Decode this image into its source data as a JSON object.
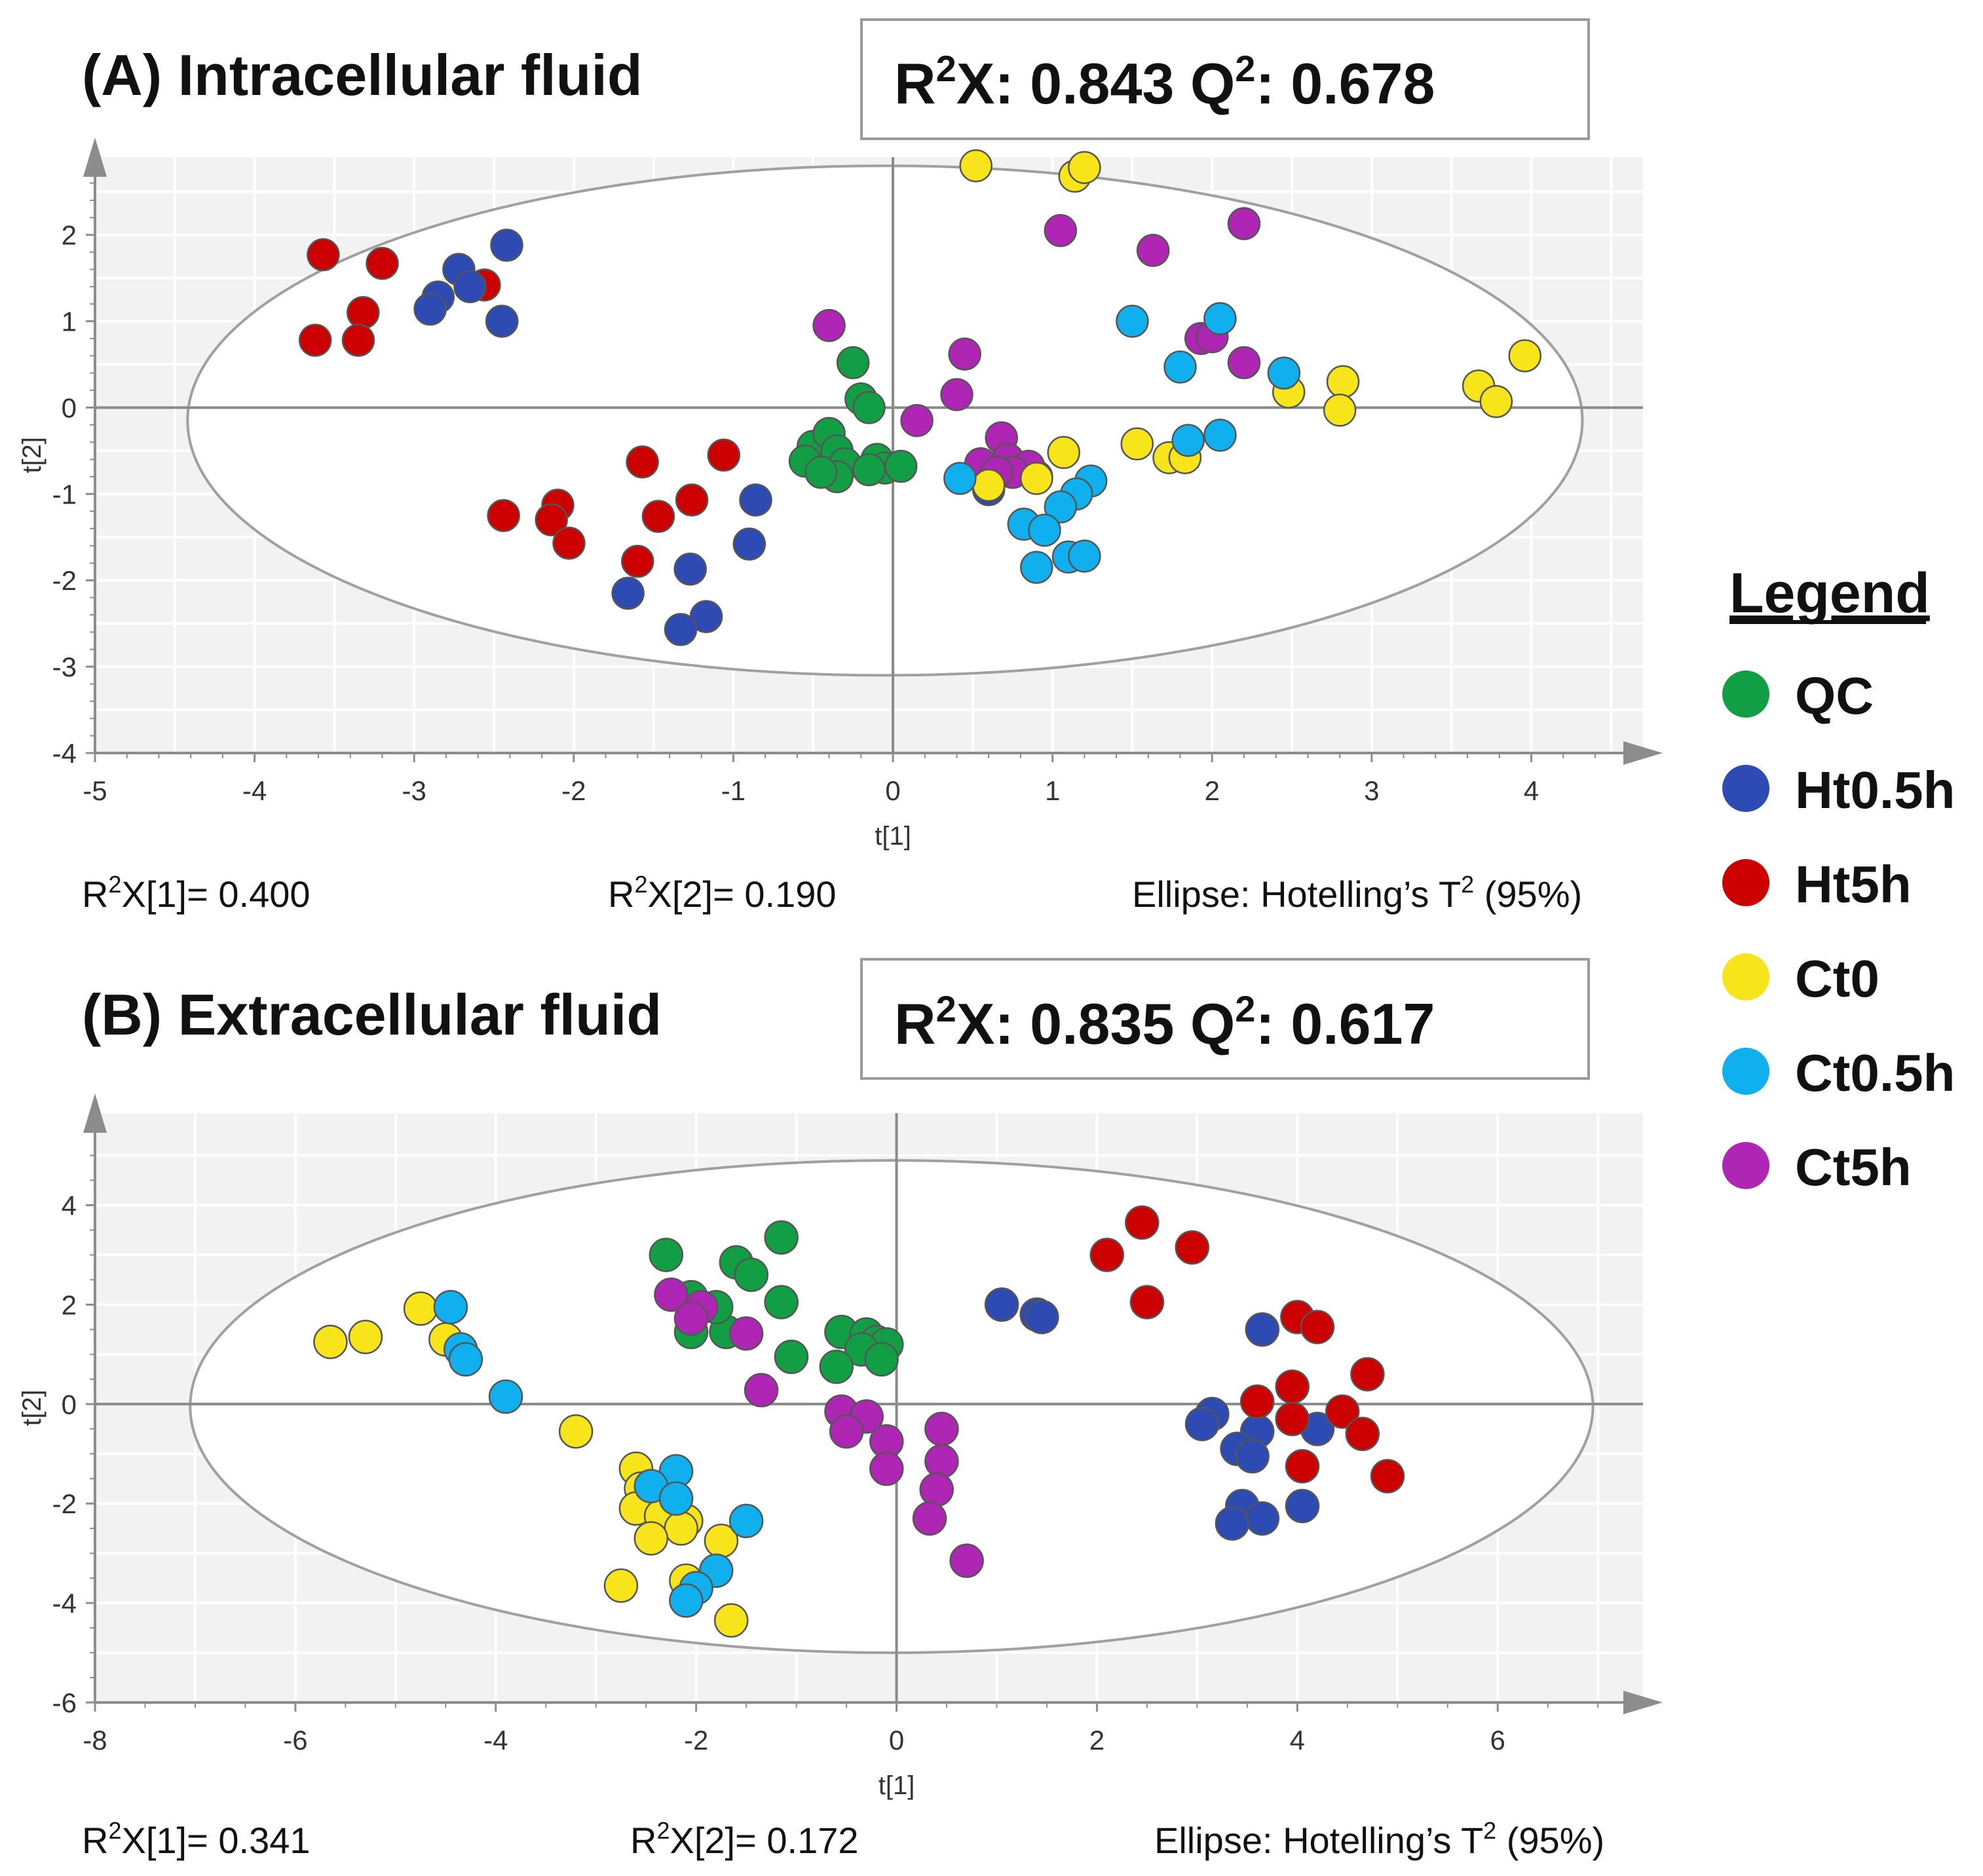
{
  "colors": {
    "QC": "#119e44",
    "Ht0.5h": "#2e4bb4",
    "Ht5h": "#cc0000",
    "Ct0": "#f8e41a",
    "Ct0.5h": "#10b0ee",
    "Ct5h": "#b026b4"
  },
  "legend": {
    "title": "Legend",
    "items": [
      "QC",
      "Ht0.5h",
      "Ht5h",
      "Ct0",
      "Ct0.5h",
      "Ct5h"
    ]
  },
  "chart_data": [
    {
      "type": "scatter",
      "title": "(A) Intracellular fluid",
      "stats_box": {
        "r2x_label": "R",
        "r2x_sup": "2",
        "r2x_rest": "X: 0.843 Q",
        "q2_sup": "2",
        "q2_value": ": 0.678"
      },
      "xlabel": "t[1]",
      "ylabel": "t[2]",
      "xlim": [
        -5,
        4.7
      ],
      "ylim": [
        -4,
        2.9
      ],
      "xticks": [
        -5,
        -4,
        -3,
        -2,
        -1,
        0,
        1,
        2,
        3,
        4
      ],
      "yticks": [
        -4,
        -3,
        -2,
        -1,
        0,
        1,
        2
      ],
      "ellipse": {
        "cx": -0.05,
        "cy": -0.15,
        "rx": 4.37,
        "ry": 2.95
      },
      "footer": {
        "left": {
          "pre": "R",
          "sup": "2",
          "post": "X[1]= 0.400"
        },
        "mid": {
          "pre": "R",
          "sup": "2",
          "post": "X[2]= 0.190"
        },
        "right": {
          "pre": "Ellipse: Hotelling’s T",
          "sup": "2",
          "post": " (95%)"
        }
      },
      "series": [
        {
          "name": "Ht5h",
          "points": [
            [
              -3.57,
              1.77
            ],
            [
              -3.2,
              1.67
            ],
            [
              -3.32,
              1.1
            ],
            [
              -3.62,
              0.78
            ],
            [
              -3.35,
              0.78
            ],
            [
              -2.56,
              1.42
            ],
            [
              -2.44,
              -1.25
            ],
            [
              -2.1,
              -1.13
            ],
            [
              -2.14,
              -1.3
            ],
            [
              -2.03,
              -1.57
            ],
            [
              -1.57,
              -0.63
            ],
            [
              -1.47,
              -1.26
            ],
            [
              -1.26,
              -1.07
            ],
            [
              -1.06,
              -0.55
            ],
            [
              -1.6,
              -1.78
            ]
          ]
        },
        {
          "name": "Ht0.5h",
          "points": [
            [
              -2.72,
              1.6
            ],
            [
              -2.65,
              1.4
            ],
            [
              -2.85,
              1.28
            ],
            [
              -2.9,
              1.14
            ],
            [
              -2.42,
              1.88
            ],
            [
              -2.45,
              1.0
            ],
            [
              -0.86,
              -1.07
            ],
            [
              -0.9,
              -1.58
            ],
            [
              -1.66,
              -2.15
            ],
            [
              -1.27,
              -1.87
            ],
            [
              -1.17,
              -2.42
            ],
            [
              -1.33,
              -2.57
            ],
            [
              0.6,
              -0.95
            ],
            [
              0.9,
              -0.8
            ]
          ]
        },
        {
          "name": "QC",
          "points": [
            [
              -0.25,
              0.52
            ],
            [
              -0.2,
              0.1
            ],
            [
              -0.15,
              0.0
            ],
            [
              -0.5,
              -0.45
            ],
            [
              -0.4,
              -0.3
            ],
            [
              -0.35,
              -0.5
            ],
            [
              -0.55,
              -0.62
            ],
            [
              -0.3,
              -0.65
            ],
            [
              -0.35,
              -0.8
            ],
            [
              -0.1,
              -0.6
            ],
            [
              -0.05,
              -0.7
            ],
            [
              0.05,
              -0.68
            ],
            [
              -0.15,
              -0.72
            ],
            [
              -0.45,
              -0.75
            ]
          ]
        },
        {
          "name": "Ct5h",
          "points": [
            [
              -0.4,
              0.95
            ],
            [
              0.45,
              0.62
            ],
            [
              0.4,
              0.15
            ],
            [
              0.15,
              -0.15
            ],
            [
              1.05,
              2.05
            ],
            [
              1.63,
              1.82
            ],
            [
              2.2,
              2.13
            ],
            [
              1.93,
              0.8
            ],
            [
              2.0,
              0.82
            ],
            [
              2.2,
              0.52
            ],
            [
              0.68,
              -0.35
            ],
            [
              0.72,
              -0.6
            ],
            [
              0.55,
              -0.65
            ],
            [
              0.85,
              -0.68
            ],
            [
              0.75,
              -0.75
            ],
            [
              0.65,
              -0.75
            ]
          ]
        },
        {
          "name": "Ct0",
          "points": [
            [
              0.52,
              2.8
            ],
            [
              1.14,
              2.68
            ],
            [
              1.2,
              2.78
            ],
            [
              1.07,
              -0.52
            ],
            [
              1.53,
              -0.42
            ],
            [
              1.73,
              -0.58
            ],
            [
              1.83,
              -0.58
            ],
            [
              2.48,
              0.18
            ],
            [
              2.82,
              0.3
            ],
            [
              2.8,
              -0.03
            ],
            [
              3.67,
              0.25
            ],
            [
              3.78,
              0.07
            ],
            [
              3.96,
              0.6
            ],
            [
              0.9,
              -0.82
            ],
            [
              0.6,
              -0.9
            ]
          ]
        },
        {
          "name": "Ct0.5h",
          "points": [
            [
              1.5,
              1.0
            ],
            [
              2.05,
              1.03
            ],
            [
              2.45,
              0.4
            ],
            [
              1.8,
              0.47
            ],
            [
              2.05,
              -0.32
            ],
            [
              1.85,
              -0.38
            ],
            [
              1.24,
              -0.85
            ],
            [
              1.15,
              -1.0
            ],
            [
              1.05,
              -1.15
            ],
            [
              0.82,
              -1.35
            ],
            [
              0.95,
              -1.42
            ],
            [
              0.9,
              -1.85
            ],
            [
              1.1,
              -1.73
            ],
            [
              1.2,
              -1.72
            ],
            [
              0.42,
              -0.82
            ]
          ]
        }
      ]
    },
    {
      "type": "scatter",
      "title": "(B) Extracellular fluid",
      "stats_box": {
        "r2x_label": "R",
        "r2x_sup": "2",
        "r2x_rest": "X: 0.835 Q",
        "q2_sup": "2",
        "q2_value": ": 0.617"
      },
      "xlabel": "t[1]",
      "ylabel": "t[2]",
      "xlim": [
        -8,
        7.45
      ],
      "ylim": [
        -6,
        5.85
      ],
      "xticks": [
        -8,
        -6,
        -4,
        -2,
        0,
        2,
        4,
        6
      ],
      "yticks": [
        -6,
        -4,
        -2,
        0,
        2,
        4
      ],
      "ellipse": {
        "cx": -0.05,
        "cy": -0.05,
        "rx": 7.0,
        "ry": 4.95
      },
      "footer": {
        "left": {
          "pre": "R",
          "sup": "2",
          "post": "X[1]= 0.341"
        },
        "mid": {
          "pre": "R",
          "sup": "2",
          "post": "X[2]= 0.172"
        },
        "right": {
          "pre": "Ellipse: Hotelling’s T",
          "sup": "2",
          "post": " (95%)"
        }
      },
      "series": [
        {
          "name": "QC",
          "points": [
            [
              -1.15,
              3.35
            ],
            [
              -2.3,
              3.0
            ],
            [
              -1.6,
              2.85
            ],
            [
              -1.45,
              2.6
            ],
            [
              -1.15,
              2.05
            ],
            [
              -2.05,
              2.15
            ],
            [
              -2.05,
              1.45
            ],
            [
              -1.7,
              1.45
            ],
            [
              -1.8,
              1.95
            ],
            [
              -1.05,
              0.95
            ],
            [
              -0.55,
              1.45
            ],
            [
              -0.3,
              1.4
            ],
            [
              -0.2,
              1.25
            ],
            [
              -0.1,
              1.2
            ],
            [
              -0.35,
              1.1
            ],
            [
              -0.15,
              0.9
            ],
            [
              -0.6,
              0.75
            ]
          ]
        },
        {
          "name": "Ct5h",
          "points": [
            [
              -2.25,
              2.2
            ],
            [
              -1.95,
              1.95
            ],
            [
              -2.05,
              1.72
            ],
            [
              -1.5,
              1.42
            ],
            [
              -1.35,
              0.28
            ],
            [
              -0.55,
              -0.15
            ],
            [
              -0.3,
              -0.25
            ],
            [
              -0.5,
              -0.55
            ],
            [
              -0.1,
              -0.75
            ],
            [
              -0.1,
              -1.3
            ],
            [
              0.45,
              -0.5
            ],
            [
              0.45,
              -1.15
            ],
            [
              0.4,
              -1.72
            ],
            [
              0.33,
              -2.3
            ],
            [
              0.7,
              -3.15
            ]
          ]
        },
        {
          "name": "Ct0",
          "points": [
            [
              -5.65,
              1.25
            ],
            [
              -5.3,
              1.35
            ],
            [
              -4.75,
              1.92
            ],
            [
              -4.5,
              1.3
            ],
            [
              -3.2,
              -0.55
            ],
            [
              -2.6,
              -1.3
            ],
            [
              -2.55,
              -1.7
            ],
            [
              -2.6,
              -2.1
            ],
            [
              -2.35,
              -2.25
            ],
            [
              -2.1,
              -2.35
            ],
            [
              -2.15,
              -2.5
            ],
            [
              -2.45,
              -2.7
            ],
            [
              -1.75,
              -2.75
            ],
            [
              -2.75,
              -3.65
            ],
            [
              -2.1,
              -3.55
            ],
            [
              -1.65,
              -4.35
            ]
          ]
        },
        {
          "name": "Ct0.5h",
          "points": [
            [
              -4.45,
              1.95
            ],
            [
              -4.35,
              1.1
            ],
            [
              -4.3,
              0.9
            ],
            [
              -3.9,
              0.15
            ],
            [
              -2.2,
              -1.35
            ],
            [
              -2.45,
              -1.65
            ],
            [
              -2.2,
              -1.9
            ],
            [
              -1.5,
              -2.35
            ],
            [
              -1.8,
              -3.35
            ],
            [
              -2.0,
              -3.7
            ],
            [
              -2.1,
              -3.95
            ]
          ]
        },
        {
          "name": "Ht0.5h",
          "points": [
            [
              1.05,
              2.0
            ],
            [
              1.4,
              1.8
            ],
            [
              1.45,
              1.75
            ],
            [
              3.65,
              1.5
            ],
            [
              3.15,
              -0.2
            ],
            [
              3.05,
              -0.4
            ],
            [
              3.6,
              -0.55
            ],
            [
              4.2,
              -0.5
            ],
            [
              3.4,
              -0.9
            ],
            [
              3.55,
              -1.05
            ],
            [
              3.45,
              -2.05
            ],
            [
              3.65,
              -2.3
            ],
            [
              3.35,
              -2.4
            ],
            [
              4.05,
              -2.05
            ]
          ]
        },
        {
          "name": "Ht5h",
          "points": [
            [
              2.45,
              3.65
            ],
            [
              2.1,
              3.0
            ],
            [
              2.95,
              3.15
            ],
            [
              2.5,
              2.05
            ],
            [
              4.0,
              1.75
            ],
            [
              4.2,
              1.55
            ],
            [
              4.7,
              0.6
            ],
            [
              3.6,
              0.05
            ],
            [
              3.95,
              0.35
            ],
            [
              3.95,
              -0.3
            ],
            [
              4.45,
              -0.15
            ],
            [
              4.65,
              -0.6
            ],
            [
              4.05,
              -1.25
            ],
            [
              4.9,
              -1.45
            ]
          ]
        }
      ]
    }
  ]
}
